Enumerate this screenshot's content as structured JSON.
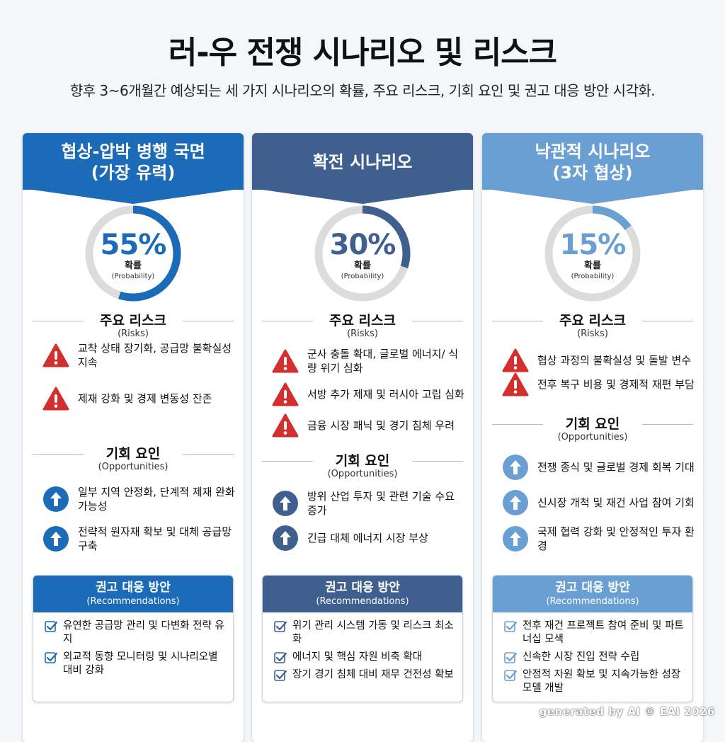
{
  "title": "러-우 전쟁 시나리오 및 리스크",
  "subtitle": "향후 3~6개월간 예상되는 세 가지 시나리오의 확률, 주요 리스크, 기회 요인 및 권고 대응 방안 시각화.",
  "labels": {
    "probability_ko": "확률",
    "probability_en": "(Probability)",
    "risks_ko": "주요 리스크",
    "risks_en": "(Risks)",
    "opps_ko": "기회 요인",
    "opps_en": "(Opportunities)",
    "recs_ko": "권고 대응 방안",
    "recs_en": "(Recommendations)"
  },
  "icons": {
    "risk": "warning-triangle-icon",
    "opportunity": "up-arrow-circle-icon",
    "recommendation": "checkbox-icon"
  },
  "scenarios": [
    {
      "title_line1": "협상-압박 병행 국면",
      "title_line2": "(가장 유력)",
      "probability": 55,
      "probability_label": "55%",
      "color": "#1b6bb8",
      "risks": [
        "교착 상태 장기화, 공급망 불확실성 지속",
        "제재 강화 및 경제 변동성 잔존"
      ],
      "opportunities": [
        "일부 지역 안정화, 단계적 제재 완화 가능성",
        "전략적 원자재 확보 및 대체 공급망 구축"
      ],
      "recommendations": [
        "유연한 공급망 관리 및 다변화 전략 유지",
        "외교적 동향 모니터링 및 시나리오별 대비 강화"
      ]
    },
    {
      "title_line1": "확전 시나리오",
      "title_line2": "",
      "probability": 30,
      "probability_label": "30%",
      "color": "#3f5f8f",
      "risks": [
        "군사 충돌 확대, 글로벌 에너지/ 식량 위기 심화",
        "서방 추가 제재 및 러시아 고립 심화",
        "금융 시장 패닉 및 경기 침체 우려"
      ],
      "opportunities": [
        "방위 산업 투자 및 관련 기술 수요 증가",
        "긴급 대체 에너지 시장 부상"
      ],
      "recommendations": [
        "위기 관리 시스템 가동 및 리스크 최소화",
        "에너지 및 핵심 자원 비축 확대",
        "장기 경기 침체 대비 재무 건전성 확보"
      ]
    },
    {
      "title_line1": "낙관적 시나리오",
      "title_line2": "(3자 협상)",
      "probability": 15,
      "probability_label": "15%",
      "color": "#6a9fd4",
      "risks": [
        "협상 과정의 불확실성 및 돌발 변수",
        "전후 복구 비용 및 경제적 재편 부담"
      ],
      "opportunities": [
        "전쟁 종식 및 글로벌 경제 회복 기대",
        "신시장 개척 및 재건 사업 참여 기회",
        "국제 협력 강화 및 안정적인 투자 환경"
      ],
      "recommendations": [
        "전후 재건 프로젝트 참여 준비 및 파트너십 모색",
        "신속한 시장 진입 전략 수립",
        "안정적 자원 확보 및 지속가능한 성장 모델 개발"
      ]
    }
  ],
  "watermark": "generated by AI © EAI 2026"
}
